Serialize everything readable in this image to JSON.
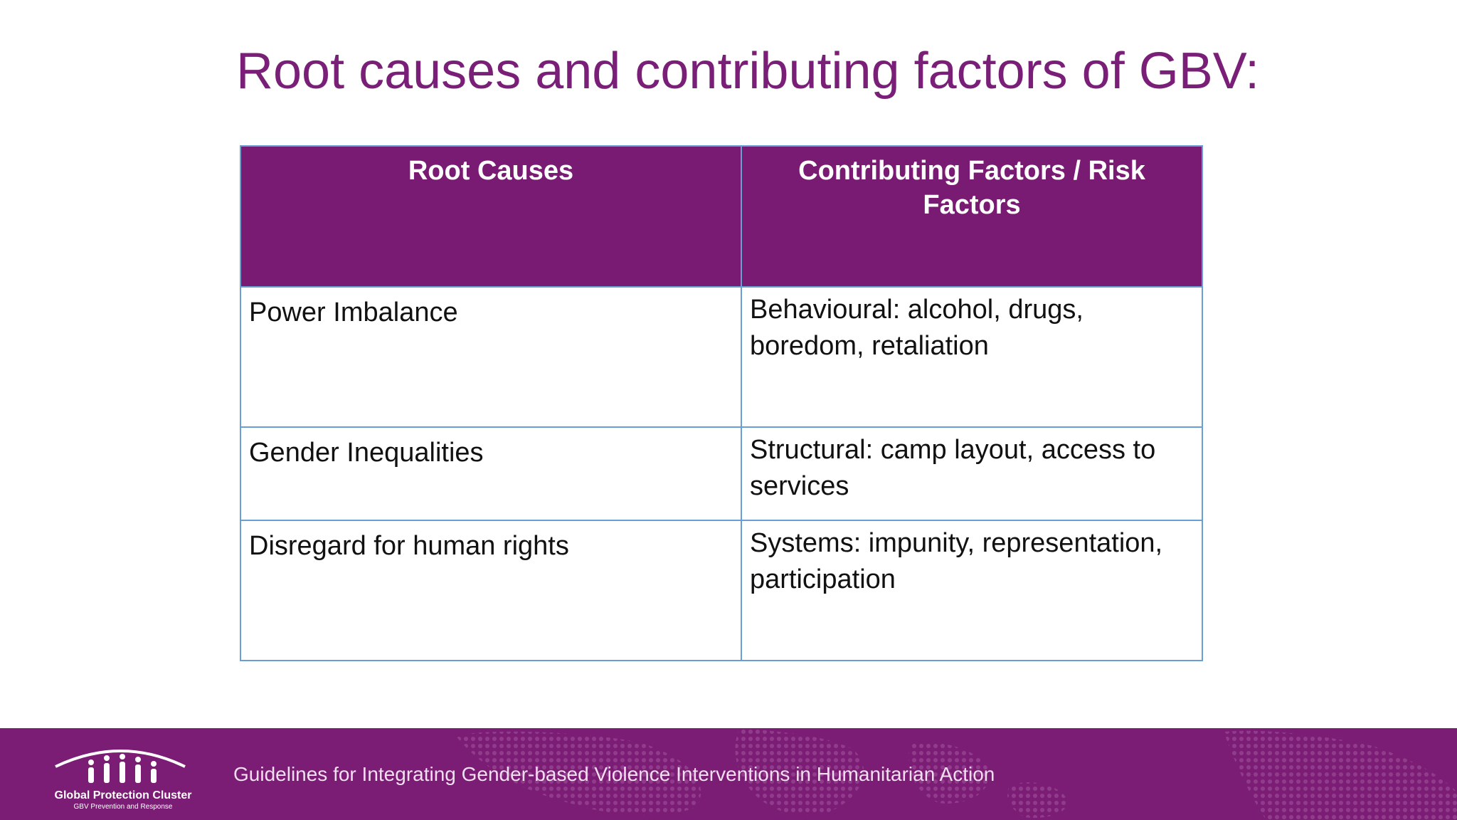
{
  "slide": {
    "title": "Root causes and contributing factors of GBV:"
  },
  "table": {
    "headers": [
      "Root Causes",
      "Contributing Factors / Risk Factors"
    ],
    "rows": [
      {
        "root_cause": "Power Imbalance",
        "contributing_factor": "Behavioural: alcohol, drugs, boredom, retaliation"
      },
      {
        "root_cause": "Gender Inequalities",
        "contributing_factor": "Structural: camp layout, access to services"
      },
      {
        "root_cause": "Disregard for human rights",
        "contributing_factor": "Systems: impunity, representation, participation"
      }
    ]
  },
  "footer": {
    "guideline_text": "Guidelines for Integrating Gender-based Violence Interventions in Humanitarian Action",
    "logo_title": "Global Protection Cluster",
    "logo_subtitle": "GBV Prevention and Response"
  },
  "colors": {
    "title": "#7a1f77",
    "header_bg": "#7a1b73",
    "footer_bg": "#7b1c75",
    "table_border": "#6a9fd6"
  }
}
